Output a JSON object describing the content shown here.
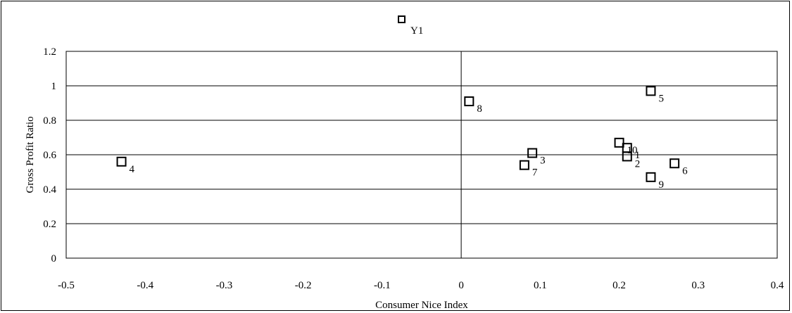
{
  "chart_data": {
    "type": "scatter",
    "title": "",
    "xlabel": "Consumer Nice Index",
    "ylabel": "Gross Profit Ratio",
    "xlim": [
      -0.5,
      0.4
    ],
    "ylim": [
      0,
      1.2
    ],
    "x_ticks": [
      -0.5,
      -0.4,
      -0.3,
      -0.2,
      -0.1,
      0,
      0.1,
      0.2,
      0.3,
      0.4
    ],
    "x_tick_labels": [
      "-0.5",
      "-0.4",
      "-0.3",
      "-0.2",
      "-0.1",
      "0",
      "0.1",
      "0.2",
      "0.3",
      "0.4"
    ],
    "y_ticks": [
      0,
      0.2,
      0.4,
      0.6,
      0.8,
      1,
      1.2
    ],
    "y_tick_labels": [
      "0",
      "0.2",
      "0.4",
      "0.6",
      "0.8",
      "1",
      "1.2"
    ],
    "grid": "horizontal",
    "points": [
      {
        "label": "1",
        "x": 0.21,
        "y": 0.64
      },
      {
        "label": "2",
        "x": 0.21,
        "y": 0.59
      },
      {
        "label": "3",
        "x": 0.09,
        "y": 0.61
      },
      {
        "label": "4",
        "x": -0.43,
        "y": 0.56
      },
      {
        "label": "5",
        "x": 0.24,
        "y": 0.97
      },
      {
        "label": "6",
        "x": 0.27,
        "y": 0.55
      },
      {
        "label": "7",
        "x": 0.08,
        "y": 0.54
      },
      {
        "label": "8",
        "x": 0.01,
        "y": 0.91
      },
      {
        "label": "9",
        "x": 0.24,
        "y": 0.47
      },
      {
        "label": "10",
        "x": 0.2,
        "y": 0.67
      }
    ],
    "legend": {
      "marker": "hollow-square",
      "label": "Y1",
      "placement": "top-center"
    }
  }
}
